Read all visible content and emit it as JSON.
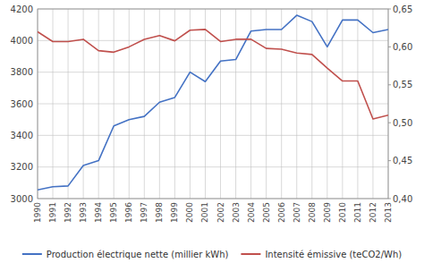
{
  "chart_data": {
    "type": "line",
    "x": [
      1990,
      1991,
      1992,
      1993,
      1994,
      1995,
      1996,
      1997,
      1998,
      1999,
      2000,
      2001,
      2002,
      2003,
      2004,
      2005,
      2006,
      2007,
      2008,
      2009,
      2010,
      2011,
      2012,
      2013
    ],
    "xlim": [
      1990,
      2013
    ],
    "xticks": [
      1990,
      1991,
      1992,
      1993,
      1994,
      1995,
      1996,
      1997,
      1998,
      1999,
      2000,
      2001,
      2002,
      2003,
      2004,
      2005,
      2006,
      2007,
      2008,
      2009,
      2010,
      2011,
      2012,
      2013
    ],
    "ylim": [
      3000,
      4200
    ],
    "yticks": [
      3000,
      3200,
      3400,
      3600,
      3800,
      4000,
      4200
    ],
    "y2lim": [
      0.4,
      0.65
    ],
    "y2ticks": [
      {
        "value": 0.4,
        "label": "0,40"
      },
      {
        "value": 0.45,
        "label": "0,45"
      },
      {
        "value": 0.5,
        "label": "0,50"
      },
      {
        "value": 0.55,
        "label": "0,55"
      },
      {
        "value": 0.6,
        "label": "0,60"
      },
      {
        "value": 0.65,
        "label": "0,65"
      }
    ],
    "grid": true,
    "legend": "bottom",
    "series": [
      {
        "name": "Production électrique nette (millier kWh)",
        "color": "#4472C4",
        "values": [
          3055,
          3075,
          3080,
          3210,
          3240,
          3460,
          3500,
          3520,
          3610,
          3640,
          3800,
          3740,
          3870,
          3880,
          4060,
          4070,
          4070,
          4160,
          4120,
          3960,
          4130,
          4130,
          4050,
          4070
        ]
      },
      {
        "name": "Intensité émissive (teCO2/Wh)",
        "color": "#C0504D",
        "axis": "y2",
        "values": [
          0.62,
          0.607,
          0.607,
          0.61,
          0.595,
          0.593,
          0.6,
          0.61,
          0.615,
          0.608,
          0.622,
          0.623,
          0.607,
          0.61,
          0.61,
          0.598,
          0.597,
          0.592,
          0.59,
          0.572,
          0.555,
          0.555,
          0.505,
          0.51
        ]
      }
    ]
  }
}
